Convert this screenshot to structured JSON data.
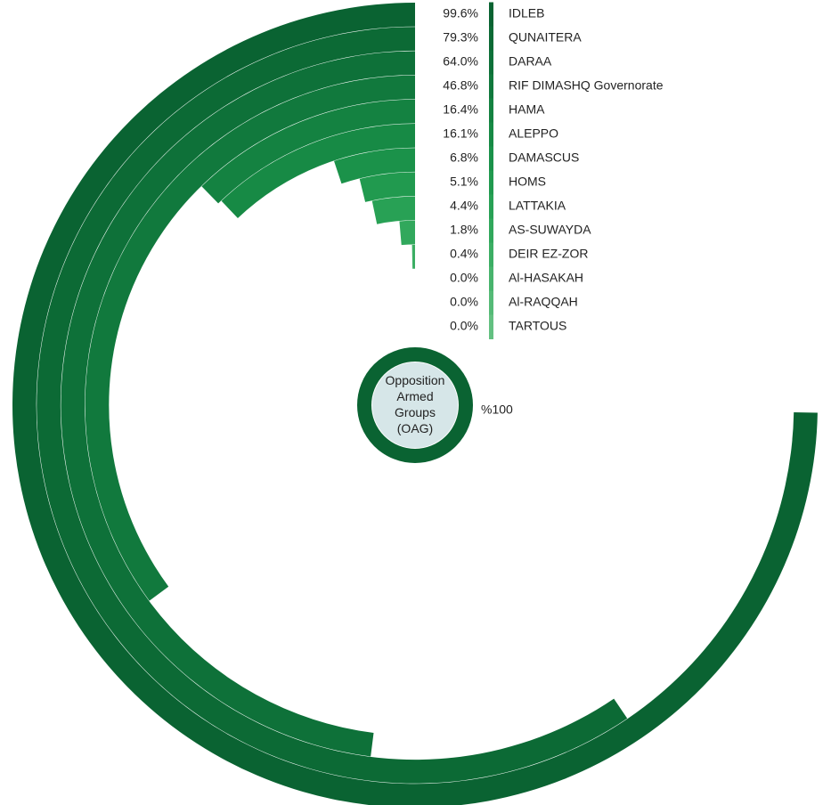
{
  "chart_data": {
    "type": "radial_bar",
    "categories": [
      "IDLEB",
      "QUNAITERA",
      "DARAA",
      "RIF DIMASHQ Governorate",
      "HAMA",
      "ALEPPO",
      "DAMASCUS",
      "HOMS",
      "LATTAKIA",
      "AS-SUWAYDA",
      "DEIR EZ-ZOR",
      "Al-HASAKAH",
      "Al-RAQQAH",
      "TARTOUS"
    ],
    "values": [
      99.6,
      79.3,
      64.0,
      46.8,
      16.4,
      16.1,
      6.8,
      5.1,
      4.4,
      1.8,
      0.4,
      0.0,
      0.0,
      0.0
    ],
    "value_labels": [
      "99.6%",
      "79.3%",
      "64.0%",
      "46.8%",
      "16.4%",
      "16.1%",
      "6.8%",
      "5.1%",
      "4.4%",
      "1.8%",
      "0.4%",
      "0.0%",
      "0.0%",
      "0.0%"
    ],
    "colors": [
      "#0a6332",
      "#0c6a35",
      "#0e7139",
      "#11793d",
      "#148241",
      "#178a45",
      "#1b924a",
      "#219a4f",
      "#28a155",
      "#31a85c",
      "#3cae64",
      "#48b46d",
      "#55ba77",
      "#63c081"
    ],
    "center": {
      "label": "Opposition Armed Groups (OAG)",
      "value": 100,
      "value_label": "%100",
      "color": "#0a6332"
    }
  }
}
